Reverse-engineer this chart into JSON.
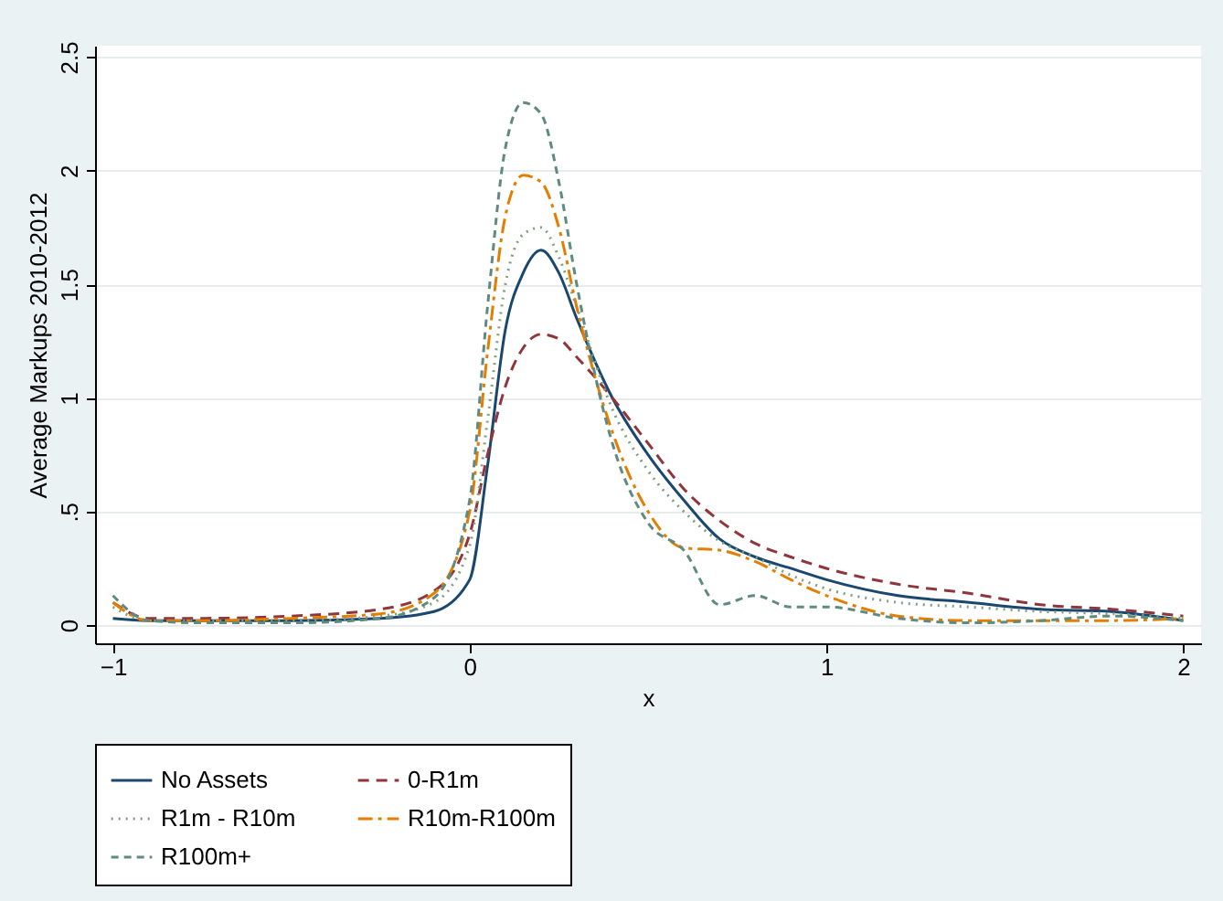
{
  "chart_data": {
    "type": "line",
    "xlabel": "x",
    "ylabel": "Average Markups 2010-2012",
    "x": [
      -1,
      -0.9,
      -0.75,
      -0.5,
      -0.25,
      -0.1,
      0,
      0.05,
      0.1,
      0.15,
      0.2,
      0.25,
      0.3,
      0.4,
      0.5,
      0.6,
      0.7,
      0.8,
      0.9,
      1,
      1.2,
      1.4,
      1.6,
      1.8,
      2
    ],
    "series": [
      {
        "name": "No Assets",
        "color": "#1a476f",
        "line_style": "solid",
        "values": [
          0.03,
          0.02,
          0.02,
          0.02,
          0.03,
          0.06,
          0.2,
          0.7,
          1.3,
          1.55,
          1.65,
          1.55,
          1.35,
          1.0,
          0.75,
          0.55,
          0.38,
          0.3,
          0.25,
          0.2,
          0.13,
          0.1,
          0.07,
          0.06,
          0.02
        ]
      },
      {
        "name": "0-R1m",
        "color": "#90353b",
        "line_style": "dashed",
        "values": [
          0.1,
          0.03,
          0.03,
          0.04,
          0.07,
          0.15,
          0.4,
          0.75,
          1.05,
          1.22,
          1.28,
          1.26,
          1.18,
          1.0,
          0.8,
          0.6,
          0.46,
          0.36,
          0.3,
          0.25,
          0.18,
          0.14,
          0.09,
          0.07,
          0.04
        ]
      },
      {
        "name": "R1m - R10m",
        "color": "#7f9f7f",
        "line_style": "dotted",
        "values": [
          0.08,
          0.02,
          0.02,
          0.02,
          0.04,
          0.1,
          0.35,
          0.9,
          1.5,
          1.72,
          1.75,
          1.62,
          1.4,
          0.95,
          0.68,
          0.5,
          0.37,
          0.3,
          0.22,
          0.16,
          0.1,
          0.08,
          0.06,
          0.05,
          0.03
        ]
      },
      {
        "name": "R10m-R100m",
        "color": "#e37e00",
        "line_style": "dashed",
        "values": [
          0.1,
          0.02,
          0.02,
          0.03,
          0.05,
          0.14,
          0.5,
          1.2,
          1.8,
          1.98,
          1.95,
          1.75,
          1.4,
          0.85,
          0.5,
          0.34,
          0.33,
          0.28,
          0.2,
          0.13,
          0.04,
          0.02,
          0.02,
          0.02,
          0.03
        ]
      },
      {
        "name": "R100m+",
        "color": "#5f8a80",
        "line_style": "dashed",
        "values": [
          0.13,
          0.02,
          0.01,
          0.01,
          0.03,
          0.12,
          0.55,
          1.4,
          2.1,
          2.3,
          2.25,
          1.95,
          1.5,
          0.8,
          0.45,
          0.33,
          0.09,
          0.13,
          0.08,
          0.08,
          0.03,
          0.01,
          0.02,
          0.04,
          0.02
        ]
      }
    ],
    "xlim": [
      -1.05,
      2.05
    ],
    "xticks": [
      -1,
      0,
      1,
      2
    ],
    "ylim": [
      -0.08,
      2.55
    ],
    "yticks": [
      0,
      {
        "value": 0.5,
        "label": ".5"
      },
      1,
      1.5,
      2,
      2.5
    ],
    "grid": "y",
    "legend": "bottom"
  }
}
